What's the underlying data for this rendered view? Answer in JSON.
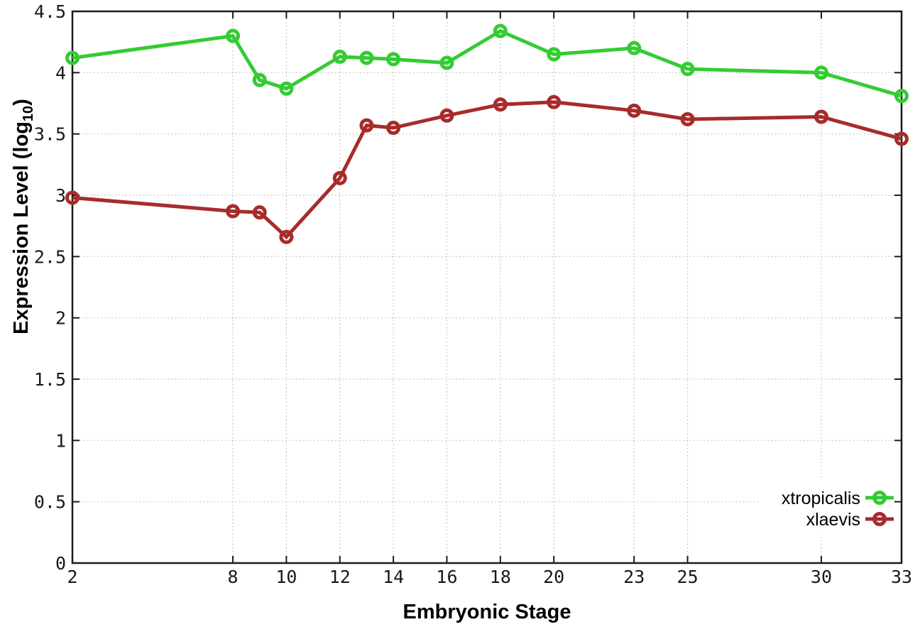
{
  "figure": {
    "xlabel": "Embryonic Stage",
    "ylabel_prefix": "Expression Level (log",
    "ylabel_sub": "10",
    "ylabel_suffix": ")"
  },
  "chart_data": {
    "type": "line",
    "title": "",
    "xlabel": "Embryonic Stage",
    "ylabel": "Expression Level (log10)",
    "x": [
      2,
      8,
      9,
      10,
      12,
      13,
      14,
      16,
      18,
      20,
      23,
      25,
      30,
      33
    ],
    "series": [
      {
        "name": "xtropicalis",
        "color": "#33CC33",
        "marker": "open-circle",
        "values": [
          4.12,
          4.3,
          3.94,
          3.87,
          4.13,
          4.12,
          4.11,
          4.08,
          4.34,
          4.15,
          4.2,
          4.03,
          4.0,
          3.81
        ]
      },
      {
        "name": "xlaevis",
        "color": "#A82B2B",
        "marker": "open-circle",
        "values": [
          2.98,
          2.87,
          2.86,
          2.66,
          3.14,
          3.57,
          3.55,
          3.65,
          3.74,
          3.76,
          3.69,
          3.62,
          3.64,
          3.46
        ]
      }
    ],
    "xlim": [
      2,
      33
    ],
    "ylim": [
      0,
      4.5
    ],
    "xticks": {
      "values": [
        2,
        8,
        10,
        12,
        14,
        16,
        18,
        20,
        23,
        25,
        30,
        33
      ],
      "labels": [
        "2",
        "8",
        "10",
        "12",
        "14",
        "16",
        "18",
        "20",
        "23",
        "25",
        "30",
        "33"
      ]
    },
    "yticks": {
      "values": [
        0,
        0.5,
        1,
        1.5,
        2,
        2.5,
        3,
        3.5,
        4,
        4.5
      ],
      "labels": [
        "0",
        "0.5",
        "1",
        "1.5",
        "2",
        "2.5",
        "3",
        "3.5",
        "4",
        "4.5"
      ]
    },
    "grid": true,
    "legend_position": "bottom-right",
    "style": {
      "background": "#ffffff",
      "border_color": "#1a1a1a",
      "grid_color": "#b8b8b8",
      "tick_label_color": "#1a1a1a"
    }
  }
}
